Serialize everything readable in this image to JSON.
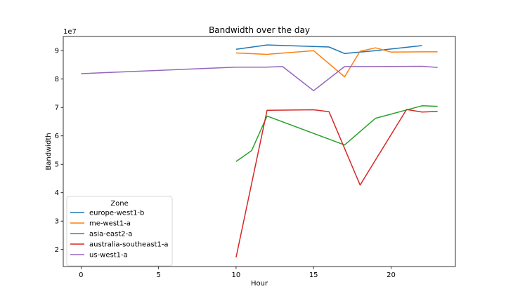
{
  "chart_data": {
    "type": "line",
    "title": "Bandwidth over the day",
    "xlabel": "Hour",
    "ylabel": "Bandwidth",
    "y_offset_label": "1e7",
    "xlim": [
      -1.15,
      24.15
    ],
    "ylim": [
      1.4,
      9.5
    ],
    "x_ticks": [
      0,
      5,
      10,
      15,
      20
    ],
    "x_tick_labels": [
      "0",
      "5",
      "10",
      "15",
      "20"
    ],
    "y_ticks": [
      2,
      3,
      4,
      5,
      6,
      7,
      8,
      9
    ],
    "y_tick_labels": [
      "2",
      "3",
      "4",
      "5",
      "6",
      "7",
      "8",
      "9"
    ],
    "grid": false,
    "legend": {
      "title": "Zone",
      "placement": "lower-left"
    },
    "series": [
      {
        "name": "europe-west1-b",
        "color": "#1f77b4",
        "x": [
          10,
          12,
          16,
          17,
          19,
          22
        ],
        "y": [
          9.05,
          9.2,
          9.13,
          8.9,
          9.0,
          9.18
        ]
      },
      {
        "name": "me-west1-a",
        "color": "#ff7f0e",
        "x": [
          10,
          12,
          15,
          17,
          18,
          19,
          20,
          22,
          23
        ],
        "y": [
          8.92,
          8.87,
          9.0,
          8.08,
          8.98,
          9.1,
          8.95,
          8.96,
          8.96
        ]
      },
      {
        "name": "asia-east2-a",
        "color": "#2ca02c",
        "x": [
          10,
          11,
          12,
          17,
          19,
          22,
          23
        ],
        "y": [
          5.1,
          5.48,
          6.7,
          5.68,
          6.62,
          7.06,
          7.04
        ]
      },
      {
        "name": "australia-southeast1-a",
        "color": "#d62728",
        "x": [
          10,
          12,
          15,
          16,
          18,
          21,
          22,
          23
        ],
        "y": [
          1.72,
          6.9,
          6.92,
          6.85,
          4.27,
          6.93,
          6.84,
          6.86
        ]
      },
      {
        "name": "us-west1-a",
        "color": "#9467bd",
        "x": [
          0,
          10,
          12,
          13,
          15,
          17,
          19,
          22,
          23
        ],
        "y": [
          8.19,
          8.42,
          8.42,
          8.44,
          7.59,
          8.44,
          8.44,
          8.45,
          8.41
        ]
      }
    ]
  }
}
